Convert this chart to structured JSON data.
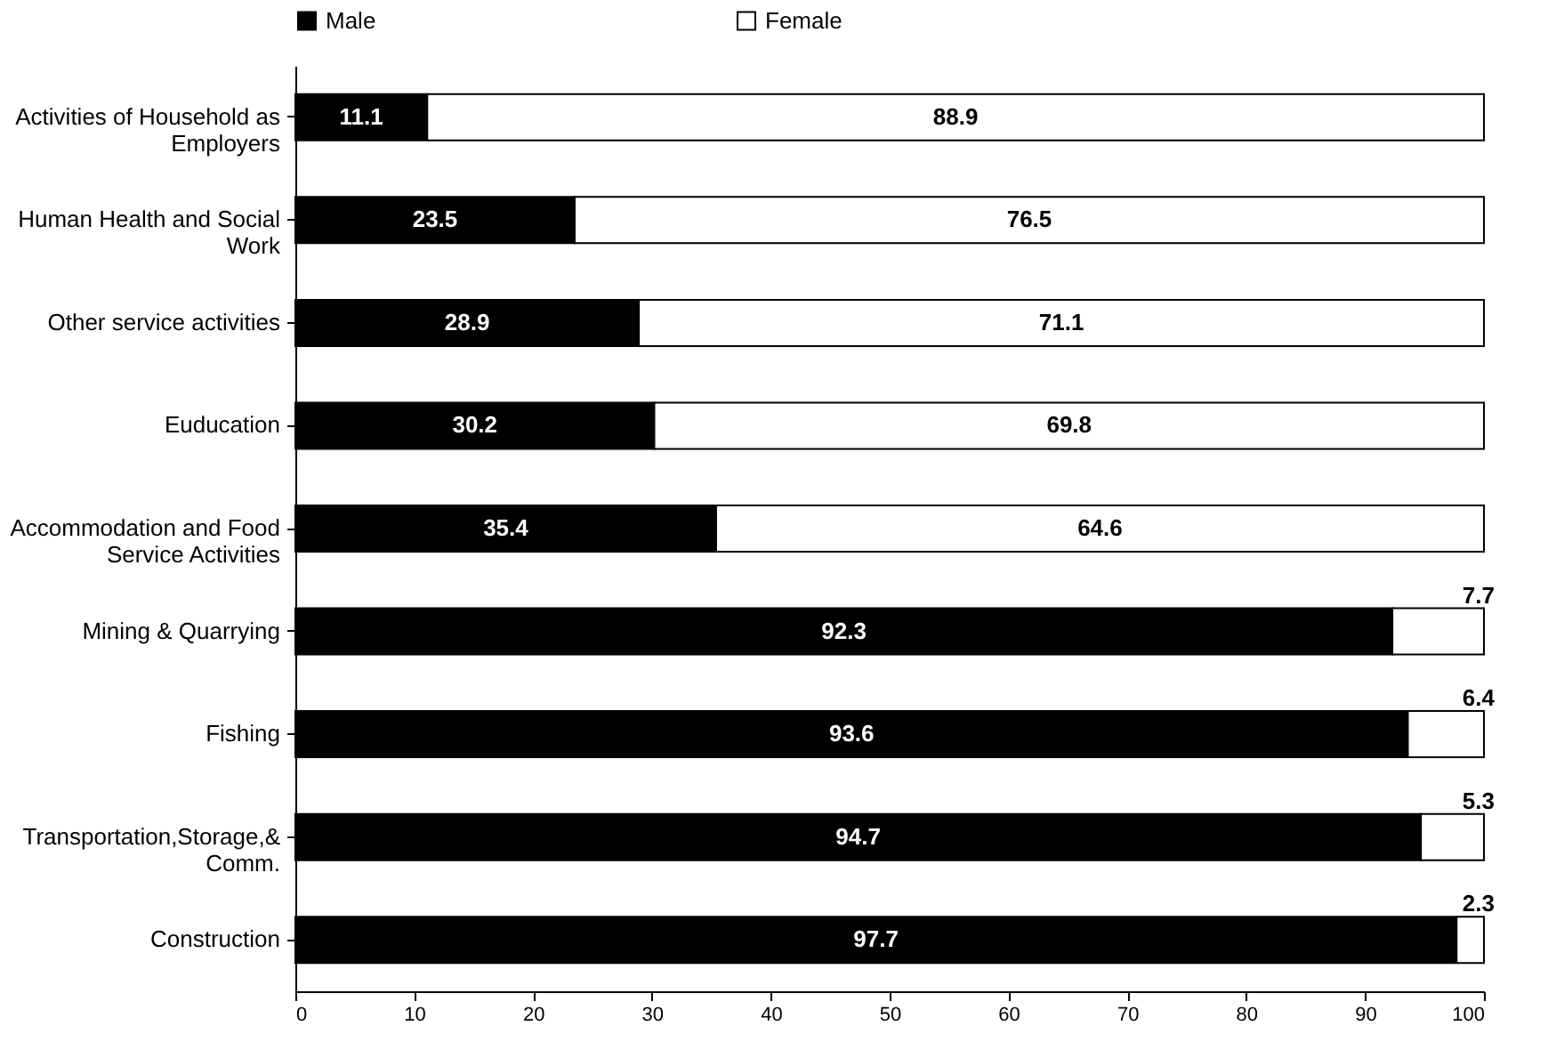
{
  "chart_data": {
    "type": "bar",
    "orientation": "horizontal",
    "stacked": true,
    "categories": [
      "Activities of Household as Employers",
      "Human Health and Social Work",
      "Other service activities",
      "Euducation",
      "Accommodation and Food Service Activities",
      "Mining & Quarrying",
      "Fishing",
      "Transportation,Storage,& Comm.",
      "Construction"
    ],
    "series": [
      {
        "name": "Male",
        "color": "#000000",
        "values": [
          11.1,
          23.5,
          28.9,
          30.2,
          35.4,
          92.3,
          93.6,
          94.7,
          97.7
        ]
      },
      {
        "name": "Female",
        "color": "#ffffff",
        "values": [
          88.9,
          76.5,
          71.1,
          69.8,
          64.6,
          7.7,
          6.4,
          5.3,
          2.3
        ]
      }
    ],
    "xlim": [
      0,
      100
    ],
    "xticks": [
      0,
      10,
      20,
      30,
      40,
      50,
      60,
      70,
      80,
      90,
      100
    ],
    "data_labels": true,
    "legend": "top",
    "grid": false
  }
}
